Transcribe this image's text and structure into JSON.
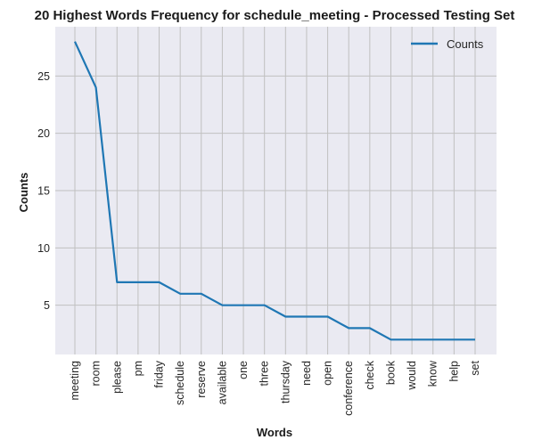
{
  "chart_data": {
    "type": "line",
    "title": "20 Highest Words Frequency for schedule_meeting - Processed Testing Set",
    "xlabel": "Words",
    "ylabel": "Counts",
    "categories": [
      "meeting",
      "room",
      "please",
      "pm",
      "friday",
      "schedule",
      "reserve",
      "available",
      "one",
      "three",
      "thursday",
      "need",
      "open",
      "conference",
      "check",
      "book",
      "would",
      "know",
      "help",
      "set"
    ],
    "series": [
      {
        "name": "Counts",
        "values": [
          28,
          24,
          7,
          7,
          7,
          6,
          6,
          5,
          5,
          5,
          4,
          4,
          4,
          3,
          3,
          2,
          2,
          2,
          2,
          2
        ]
      }
    ],
    "yticks": [
      5,
      10,
      15,
      20,
      25
    ],
    "ylim": [
      0.7,
      29.3
    ],
    "grid": true,
    "legend_position": "top-right",
    "colors": {
      "line": "#1f77b4",
      "background": "#eaeaf2",
      "grid": "#c0c0c0"
    }
  }
}
